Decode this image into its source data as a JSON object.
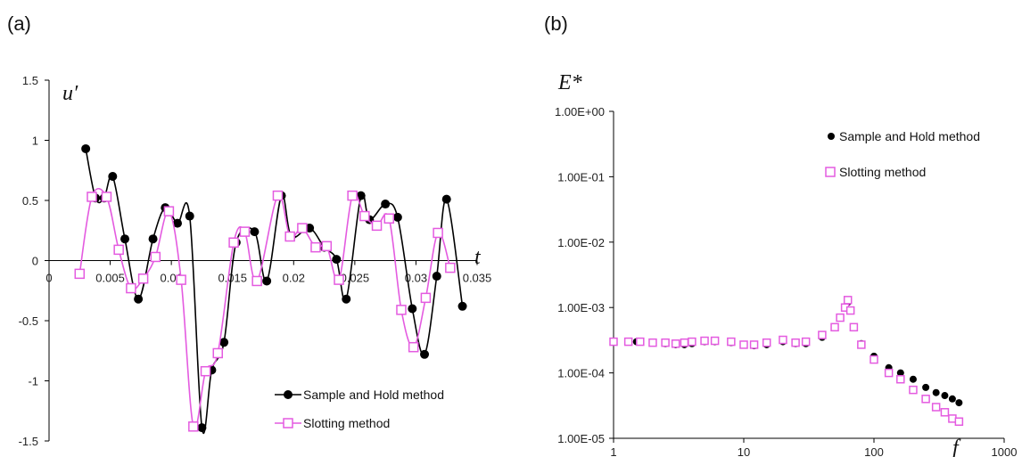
{
  "chart_data": [
    {
      "panel_label": "(a)",
      "type": "line",
      "xlabel": "t",
      "ylabel": "u′",
      "xlim": [
        0,
        0.035
      ],
      "ylim": [
        -1.5,
        1.5
      ],
      "x_ticks": [
        0,
        0.005,
        0.01,
        0.015,
        0.02,
        0.025,
        0.03,
        0.035
      ],
      "x_tick_labels": [
        "0",
        "0.005",
        "0.01",
        "0.015",
        "0.02",
        "0.025",
        "0.03",
        "0.035"
      ],
      "y_ticks": [
        1.5,
        1,
        0.5,
        0,
        -0.5,
        -1,
        -1.5
      ],
      "y_tick_labels": [
        "1.5",
        "1",
        "0.5",
        "0",
        "-0.5",
        "-1",
        "-1.5"
      ],
      "legend_position": "bottom-right",
      "series": [
        {
          "name": "Sample and Hold method",
          "color": "#000000",
          "marker": "filled-circle",
          "x": [
            0.003,
            0.0038,
            0.0045,
            0.0052,
            0.0062,
            0.0073,
            0.0085,
            0.0095,
            0.0105,
            0.0115,
            0.0125,
            0.0133,
            0.0143,
            0.0153,
            0.0168,
            0.0178,
            0.019,
            0.0198,
            0.0213,
            0.0225,
            0.0235,
            0.0243,
            0.0255,
            0.0262,
            0.0275,
            0.0285,
            0.0297,
            0.0307,
            0.0317,
            0.0325,
            0.0338
          ],
          "y": [
            0.93,
            0.52,
            0.52,
            0.7,
            0.18,
            -0.32,
            0.18,
            0.44,
            0.31,
            0.37,
            -1.39,
            -0.91,
            -0.68,
            0.15,
            0.24,
            -0.17,
            0.54,
            0.2,
            0.27,
            0.11,
            0.01,
            -0.32,
            0.54,
            0.34,
            0.47,
            0.36,
            -0.4,
            -0.78,
            -0.13,
            0.51,
            -0.38
          ]
        },
        {
          "name": "Slotting method",
          "color": "#e45be0",
          "marker": "open-square",
          "x": [
            0.0025,
            0.0035,
            0.0047,
            0.0057,
            0.0067,
            0.0077,
            0.0087,
            0.0098,
            0.0108,
            0.0118,
            0.0128,
            0.0138,
            0.0151,
            0.016,
            0.017,
            0.0187,
            0.0197,
            0.0207,
            0.0218,
            0.0227,
            0.0237,
            0.0248,
            0.0258,
            0.0268,
            0.0278,
            0.0288,
            0.0298,
            0.0308,
            0.0318,
            0.0328
          ],
          "y": [
            -0.11,
            0.53,
            0.53,
            0.09,
            -0.23,
            -0.15,
            0.03,
            0.41,
            -0.16,
            -1.38,
            -0.92,
            -0.77,
            0.15,
            0.24,
            -0.17,
            0.54,
            0.2,
            0.27,
            0.11,
            0.12,
            -0.16,
            0.54,
            0.37,
            0.29,
            0.35,
            -0.41,
            -0.72,
            -0.31,
            0.23,
            -0.06
          ]
        }
      ]
    },
    {
      "panel_label": "(b)",
      "type": "scatter",
      "xlabel": "f",
      "ylabel": "E*",
      "x_scale": "log",
      "y_scale": "log",
      "xlim": [
        1,
        1000
      ],
      "ylim": [
        1e-05,
        1
      ],
      "x_ticks": [
        1,
        10,
        100,
        1000
      ],
      "x_tick_labels": [
        "1",
        "10",
        "100",
        "1000"
      ],
      "y_ticks": [
        1,
        0.1,
        0.01,
        0.001,
        0.0001,
        1e-05
      ],
      "y_tick_labels": [
        "1.00E+00",
        "1.00E-01",
        "1.00E-02",
        "1.00E-03",
        "1.00E-04",
        "1.00E-05"
      ],
      "legend_position": "top-right",
      "series": [
        {
          "name": "Sample and Hold method",
          "color": "#000000",
          "marker": "filled-circle",
          "x": [
            1,
            1.5,
            2,
            2.5,
            3,
            3.5,
            4,
            5,
            6,
            8,
            10,
            12,
            15,
            20,
            25,
            30,
            40,
            50,
            55,
            60,
            63,
            66,
            70,
            80,
            100,
            130,
            160,
            200,
            250,
            300,
            350,
            400,
            450
          ],
          "y": [
            0.0003,
            0.0003,
            0.00029,
            0.00028,
            0.00027,
            0.00027,
            0.00028,
            0.0003,
            0.0003,
            0.00029,
            0.00027,
            0.00026,
            0.00027,
            0.0003,
            0.00028,
            0.00028,
            0.00035,
            0.0005,
            0.0007,
            0.001,
            0.0012,
            0.0009,
            0.0005,
            0.00028,
            0.00018,
            0.00012,
            0.0001,
            8e-05,
            6e-05,
            5e-05,
            4.5e-05,
            4e-05,
            3.5e-05
          ]
        },
        {
          "name": "Slotting method",
          "color": "#e45be0",
          "marker": "open-square",
          "x": [
            1,
            1.3,
            1.6,
            2,
            2.5,
            3,
            3.5,
            4,
            5,
            6,
            8,
            10,
            12,
            15,
            20,
            25,
            30,
            40,
            50,
            55,
            60,
            63,
            66,
            70,
            80,
            100,
            130,
            160,
            200,
            250,
            300,
            350,
            400,
            450
          ],
          "y": [
            0.0003,
            0.0003,
            0.0003,
            0.00029,
            0.00029,
            0.00028,
            0.00029,
            0.0003,
            0.00031,
            0.00031,
            0.0003,
            0.00027,
            0.00027,
            0.00029,
            0.00032,
            0.00029,
            0.0003,
            0.00038,
            0.0005,
            0.0007,
            0.001,
            0.0013,
            0.0009,
            0.0005,
            0.00027,
            0.00016,
            0.0001,
            8e-05,
            5.5e-05,
            4e-05,
            3e-05,
            2.5e-05,
            2e-05,
            1.8e-05
          ]
        }
      ]
    }
  ]
}
